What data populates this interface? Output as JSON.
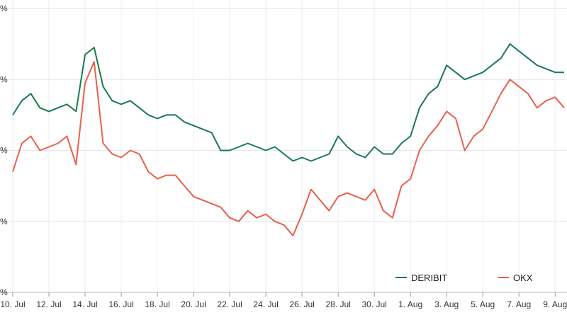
{
  "chart_data": {
    "type": "line",
    "title": "",
    "xlabel": "",
    "ylabel": "",
    "x_tick_labels": [
      "10. Jul",
      "12. Jul",
      "14. Jul",
      "16. Jul",
      "18. Jul",
      "20. Jul",
      "22. Jul",
      "24. Jul",
      "26. Jul",
      "28. Jul",
      "30. Jul",
      "1. Aug",
      "3. Aug",
      "5. Aug",
      "7. Aug",
      "9. Aug"
    ],
    "y_tick_labels": [
      "%",
      "%",
      "%",
      "%",
      "%"
    ],
    "grid": true,
    "legend_placement": "bottom-right",
    "x": [
      "10. Jul",
      "10.5 Jul",
      "11. Jul",
      "11.5 Jul",
      "12. Jul",
      "12.5 Jul",
      "13. Jul",
      "13.5 Jul",
      "14. Jul",
      "14.5 Jul",
      "15. Jul",
      "15.5 Jul",
      "16. Jul",
      "16.5 Jul",
      "17. Jul",
      "17.5 Jul",
      "18. Jul",
      "18.5 Jul",
      "19. Jul",
      "19.5 Jul",
      "20. Jul",
      "20.5 Jul",
      "21. Jul",
      "21.5 Jul",
      "22. Jul",
      "22.5 Jul",
      "23. Jul",
      "23.5 Jul",
      "24. Jul",
      "24.5 Jul",
      "25. Jul",
      "25.5 Jul",
      "26. Jul",
      "26.5 Jul",
      "27. Jul",
      "27.5 Jul",
      "28. Jul",
      "28.5 Jul",
      "29. Jul",
      "29.5 Jul",
      "30. Jul",
      "30.5 Jul",
      "31. Jul",
      "31.5 Jul",
      "1. Aug",
      "1.5 Aug",
      "2. Aug",
      "2.5 Aug",
      "3. Aug",
      "3.5 Aug",
      "4. Aug",
      "4.5 Aug",
      "5. Aug",
      "5.5 Aug",
      "6. Aug",
      "6.5 Aug",
      "7. Aug",
      "7.5 Aug",
      "8. Aug",
      "8.5 Aug",
      "9. Aug",
      "9.5 Aug"
    ],
    "series": [
      {
        "name": "DERIBIT",
        "color": "#1a7a4c",
        "values": [
          2.5,
          2.7,
          2.8,
          2.6,
          2.55,
          2.6,
          2.65,
          2.55,
          3.35,
          3.45,
          2.9,
          2.7,
          2.65,
          2.7,
          2.6,
          2.5,
          2.45,
          2.5,
          2.5,
          2.4,
          2.35,
          2.3,
          2.25,
          2.0,
          2.0,
          2.05,
          2.1,
          2.05,
          2.0,
          2.05,
          1.95,
          1.85,
          1.9,
          1.85,
          1.9,
          1.95,
          2.2,
          2.05,
          1.95,
          1.9,
          2.05,
          1.95,
          1.95,
          2.1,
          2.2,
          2.6,
          2.8,
          2.9,
          3.2,
          3.1,
          3.0,
          3.05,
          3.1,
          3.2,
          3.3,
          3.5,
          3.4,
          3.3,
          3.2,
          3.15,
          3.1,
          3.1
        ]
      },
      {
        "name": "OKX",
        "color": "#e8604c",
        "values": [
          1.7,
          2.1,
          2.2,
          2.0,
          2.05,
          2.1,
          2.2,
          1.8,
          2.95,
          3.25,
          2.1,
          1.95,
          1.9,
          2.0,
          1.95,
          1.7,
          1.6,
          1.65,
          1.65,
          1.5,
          1.35,
          1.3,
          1.25,
          1.2,
          1.05,
          1.0,
          1.15,
          1.05,
          1.1,
          1.0,
          0.95,
          0.8,
          1.1,
          1.45,
          1.3,
          1.15,
          1.35,
          1.4,
          1.35,
          1.3,
          1.45,
          1.15,
          1.05,
          1.5,
          1.6,
          2.0,
          2.2,
          2.35,
          2.55,
          2.45,
          2.0,
          2.2,
          2.3,
          2.55,
          2.8,
          3.0,
          2.9,
          2.8,
          2.6,
          2.7,
          2.75,
          2.6
        ]
      }
    ]
  }
}
